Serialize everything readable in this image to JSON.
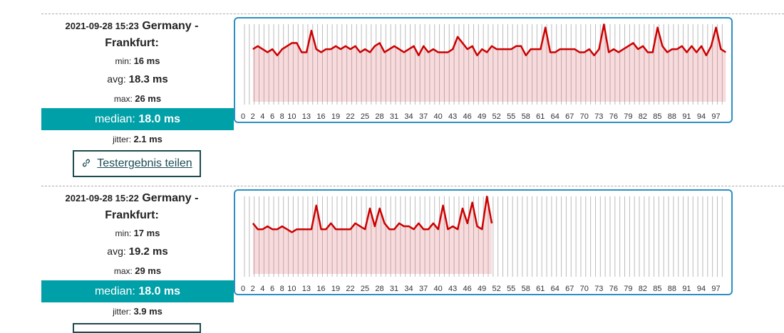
{
  "results": [
    {
      "timestamp": "2021-09-28 15:23",
      "location": "Germany - Frankfurt:",
      "min_label": "min:",
      "min": "16 ms",
      "avg_label": "avg:",
      "avg": "18.3 ms",
      "max_label": "max:",
      "max": "26 ms",
      "median_label": "median:",
      "median": "18.0 ms",
      "jitter_label": "jitter:",
      "jitter": "2.1 ms",
      "share": "Testergebnis teilen"
    },
    {
      "timestamp": "2021-09-28 15:22",
      "location": "Germany - Frankfurt:",
      "min_label": "min:",
      "min": "17 ms",
      "avg_label": "avg:",
      "avg": "19.2 ms",
      "max_label": "max:",
      "max": "29 ms",
      "median_label": "median:",
      "median": "18.0 ms",
      "jitter_label": "jitter:",
      "jitter": "3.9 ms"
    }
  ],
  "chart_data": [
    {
      "type": "line",
      "color": "#cc0000",
      "categories": [
        "0",
        null,
        "2",
        null,
        "4",
        null,
        "6",
        null,
        "8",
        null,
        "10",
        null,
        null,
        "13",
        null,
        null,
        "16",
        null,
        null,
        "19",
        null,
        null,
        "22",
        null,
        null,
        "25",
        null,
        null,
        "28",
        null,
        null,
        "31",
        null,
        null,
        "34",
        null,
        null,
        "37",
        null,
        null,
        "40",
        null,
        null,
        "43",
        null,
        null,
        "46",
        null,
        null,
        "49",
        null,
        null,
        "52",
        null,
        null,
        "55",
        null,
        null,
        "58",
        null,
        null,
        "61",
        null,
        null,
        "64",
        null,
        null,
        "67",
        null,
        null,
        "70",
        null,
        null,
        "73",
        null,
        null,
        "76",
        null,
        null,
        "79",
        null,
        null,
        "82",
        null,
        null,
        "85",
        null,
        null,
        "88",
        null,
        null,
        "91",
        null,
        null,
        "94",
        null,
        null,
        "97",
        null
      ],
      "values": [
        null,
        18,
        19,
        18,
        17,
        18,
        16,
        18,
        19,
        20,
        20,
        17,
        17,
        24,
        18,
        17,
        18,
        18,
        19,
        18,
        19,
        18,
        19,
        17,
        18,
        17,
        19,
        20,
        17,
        18,
        19,
        18,
        17,
        18,
        19,
        16,
        19,
        17,
        18,
        17,
        17,
        17,
        18,
        22,
        20,
        18,
        19,
        16,
        18,
        17,
        19,
        18,
        18,
        18,
        18,
        19,
        19,
        16,
        18,
        18,
        18,
        25,
        17,
        17,
        18,
        18,
        18,
        18,
        17,
        17,
        18,
        16,
        18,
        26,
        17,
        18,
        17,
        18,
        19,
        20,
        18,
        19,
        17,
        17,
        25,
        19,
        17,
        18,
        18,
        19,
        17,
        19,
        17,
        19,
        16,
        19,
        25,
        18,
        17
      ],
      "ylim": [
        1,
        27
      ]
    },
    {
      "type": "line",
      "color": "#cc0000",
      "categories": [
        "0",
        null,
        "2",
        null,
        "4",
        null,
        "6",
        null,
        "8",
        null,
        "10",
        null,
        null,
        "13",
        null,
        null,
        "16",
        null,
        null,
        "19",
        null,
        null,
        "22",
        null,
        null,
        "25",
        null,
        null,
        "28",
        null,
        null,
        "31",
        null,
        null,
        "34",
        null,
        null,
        "37",
        null,
        null,
        "40",
        null,
        null,
        "43",
        null,
        null,
        "46",
        null,
        null,
        "49",
        null,
        null,
        "52",
        null,
        null,
        "55",
        null,
        null,
        "58",
        null,
        null,
        "61",
        null,
        null,
        "64",
        null,
        null,
        "67",
        null,
        null,
        "70",
        null,
        null,
        "73",
        null,
        null,
        "76",
        null,
        null,
        "79",
        null,
        null,
        "82",
        null,
        null,
        "85",
        null,
        null,
        "88",
        null,
        null,
        "91",
        null,
        null,
        "94",
        null,
        null,
        "97",
        null
      ],
      "values": [
        null,
        20,
        18,
        18,
        19,
        18,
        18,
        19,
        18,
        17,
        18,
        18,
        18,
        18,
        26,
        18,
        18,
        20,
        18,
        18,
        18,
        18,
        20,
        19,
        18,
        25,
        19,
        25,
        20,
        18,
        18,
        20,
        19,
        19,
        18,
        20,
        18,
        18,
        20,
        18,
        26,
        18,
        19,
        18,
        25,
        20,
        27,
        19,
        18,
        29,
        20,
        null,
        null,
        null,
        null,
        null,
        null,
        null,
        null,
        null,
        null,
        null,
        null,
        null,
        null,
        null,
        null,
        null,
        null,
        null,
        null,
        null,
        null,
        null,
        null,
        null,
        null,
        null,
        null,
        null,
        null,
        null,
        null,
        null,
        null,
        null,
        null,
        null,
        null,
        null,
        null,
        null,
        null,
        null,
        null,
        null,
        null,
        null,
        null
      ],
      "ylim": [
        3,
        30
      ]
    }
  ]
}
